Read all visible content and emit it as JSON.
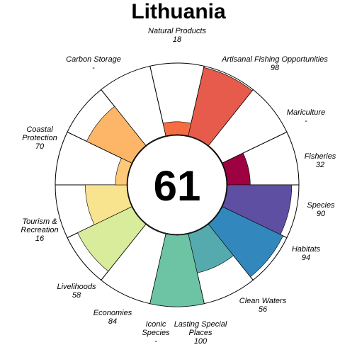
{
  "chart_data": {
    "type": "flower",
    "title": "Lithuania",
    "overall_score": "61",
    "max_score": 100,
    "petals": [
      {
        "label": "Natural Products",
        "value": 18,
        "value_label": "18",
        "color": "#f46d43"
      },
      {
        "label": "Artisanal Fishing Opportunities",
        "value": 98,
        "value_label": "98",
        "color": "#e65b4b"
      },
      {
        "label": "Mariculture",
        "value": null,
        "value_label": "-",
        "color": "#d53e4f"
      },
      {
        "label": "Fisheries",
        "value": 32,
        "value_label": "32",
        "color": "#9e0142"
      },
      {
        "label": "Species",
        "value": 90,
        "value_label": "90",
        "color": "#5e4fa2"
      },
      {
        "label": "Habitats",
        "value": 94,
        "value_label": "94",
        "color": "#3288bd"
      },
      {
        "label": "Clean Waters",
        "value": 56,
        "value_label": "56",
        "color": "#55aaad"
      },
      {
        "label": "Lasting Special Places",
        "value": 100,
        "value_label": "100",
        "color": "#6cc4a4"
      },
      {
        "label": "Iconic Species",
        "value": null,
        "value_label": "-",
        "color": "#abdda4"
      },
      {
        "label": "Economies",
        "value": 84,
        "value_label": "84",
        "color": "#d8ec9c"
      },
      {
        "label": "Livelihoods",
        "value": 58,
        "value_label": "58",
        "color": "#f8e38e"
      },
      {
        "label": "Tourism & Recreation",
        "value": 16,
        "value_label": "16",
        "color": "#fdc877"
      },
      {
        "label": "Coastal Protection",
        "value": 70,
        "value_label": "70",
        "color": "#fdb567"
      },
      {
        "label": "Carbon Storage",
        "value": null,
        "value_label": "-",
        "color": "#f89c5a"
      }
    ]
  }
}
